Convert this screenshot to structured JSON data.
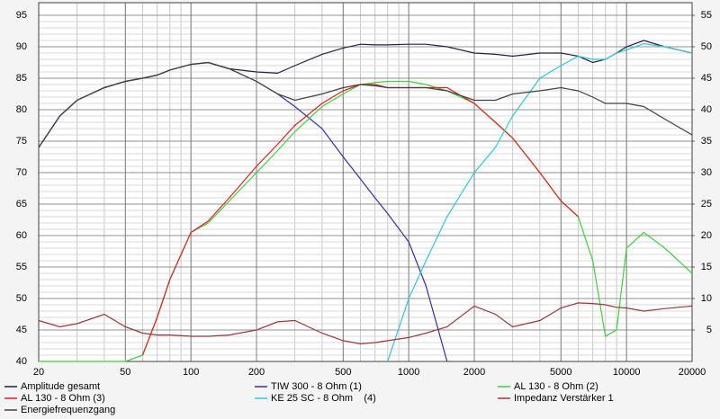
{
  "chart_data": {
    "type": "line",
    "x_scale": "log",
    "grid": true,
    "x": [
      20,
      25,
      30,
      40,
      50,
      60,
      70,
      80,
      100,
      120,
      150,
      200,
      250,
      300,
      400,
      500,
      600,
      700,
      800,
      1000,
      1200,
      1500,
      2000,
      2500,
      3000,
      4000,
      5000,
      6000,
      7000,
      8000,
      9000,
      10000,
      12000,
      15000,
      20000
    ],
    "xlim": [
      20,
      20000
    ],
    "xticks": [
      20,
      50,
      100,
      200,
      500,
      1000,
      2000,
      5000,
      10000,
      20000
    ],
    "ylim": [
      40,
      97
    ],
    "yticks": [
      40,
      45,
      50,
      55,
      60,
      65,
      70,
      75,
      80,
      85,
      90,
      95
    ],
    "y2lim": [
      0,
      57
    ],
    "y2ticks": [
      5,
      10,
      15,
      20,
      25,
      30,
      35,
      40,
      45,
      50,
      55
    ],
    "series": [
      {
        "name": "Amplitude gesamt",
        "color": "#202048",
        "values": [
          74,
          79,
          81.5,
          83.5,
          84.5,
          85,
          85.5,
          86.3,
          87.2,
          87.5,
          86.5,
          86,
          85.8,
          87,
          88.8,
          89.8,
          90.4,
          90.3,
          90.3,
          90.4,
          90.4,
          90,
          89,
          88.8,
          88.5,
          89,
          89,
          88.5,
          87.5,
          88,
          89,
          90,
          91,
          90,
          89
        ]
      },
      {
        "name": "TIW 300 - 8 Ohm (1)",
        "color": "#3030b0",
        "values": [
          74,
          79,
          81.5,
          83.5,
          84.5,
          85,
          85.5,
          86.3,
          87.2,
          87.5,
          86.5,
          84.5,
          82.5,
          80.5,
          77,
          72.5,
          69,
          66,
          63.5,
          59,
          52,
          40,
          null,
          null,
          null,
          null,
          null,
          null,
          null,
          null,
          null,
          null,
          null,
          null,
          null
        ]
      },
      {
        "name": "AL 130 - 8 Ohm (2)",
        "color": "#40d040",
        "values": [
          40,
          40,
          40,
          40,
          40,
          41,
          47,
          53,
          60.5,
          62,
          65.5,
          70,
          73.5,
          76.5,
          80.5,
          82.5,
          84,
          84.3,
          84.5,
          84.5,
          84,
          83,
          81,
          78,
          75.5,
          70,
          65.5,
          63,
          56,
          44,
          45,
          58,
          60.5,
          58,
          54
        ]
      },
      {
        "name": "AL 130 - 8 Ohm (3)",
        "color": "#e02020",
        "values": [
          null,
          null,
          null,
          null,
          null,
          41,
          47,
          53,
          60.5,
          62.3,
          66,
          71,
          74.5,
          77.5,
          81,
          83,
          84,
          84,
          83.5,
          83.5,
          83.5,
          83.5,
          81,
          78,
          75.5,
          70,
          65.5,
          63,
          null,
          null,
          null,
          null,
          null,
          null,
          null
        ]
      },
      {
        "name": "KE 25 SC - 8 Ohm    (4)",
        "color": "#30c8d8",
        "values": [
          null,
          null,
          null,
          null,
          null,
          null,
          null,
          null,
          null,
          null,
          null,
          null,
          null,
          null,
          null,
          null,
          null,
          null,
          40,
          50,
          56,
          63,
          70,
          74,
          79,
          85,
          87,
          88.5,
          88,
          88,
          89,
          89.5,
          90.5,
          90,
          89
        ]
      },
      {
        "name": "Impedanz Verstärker 1",
        "color": "#983838",
        "axis": "y2",
        "values": [
          6.5,
          5.5,
          6,
          7.5,
          5.5,
          4.5,
          4.2,
          4.2,
          4,
          4,
          4.2,
          5,
          6.3,
          6.5,
          4.5,
          3.3,
          2.8,
          3,
          3.3,
          3.8,
          4.5,
          5.5,
          8.8,
          7.5,
          5.5,
          6.5,
          8.5,
          9.3,
          9.2,
          9,
          8.6,
          8.5,
          8,
          8.4,
          8.8
        ]
      },
      {
        "name": "Energiefrequenzgang",
        "color": "#404040",
        "values": [
          74,
          79,
          81.5,
          83.5,
          84.5,
          85,
          85.5,
          86.3,
          87.2,
          87.5,
          86.5,
          84.5,
          82.5,
          81.5,
          82.5,
          83.5,
          84,
          83.8,
          83.5,
          83.5,
          83.5,
          83,
          81.5,
          81.5,
          82.5,
          83,
          83.5,
          83,
          82,
          81,
          81,
          81,
          80.5,
          78.5,
          76
        ]
      }
    ]
  }
}
